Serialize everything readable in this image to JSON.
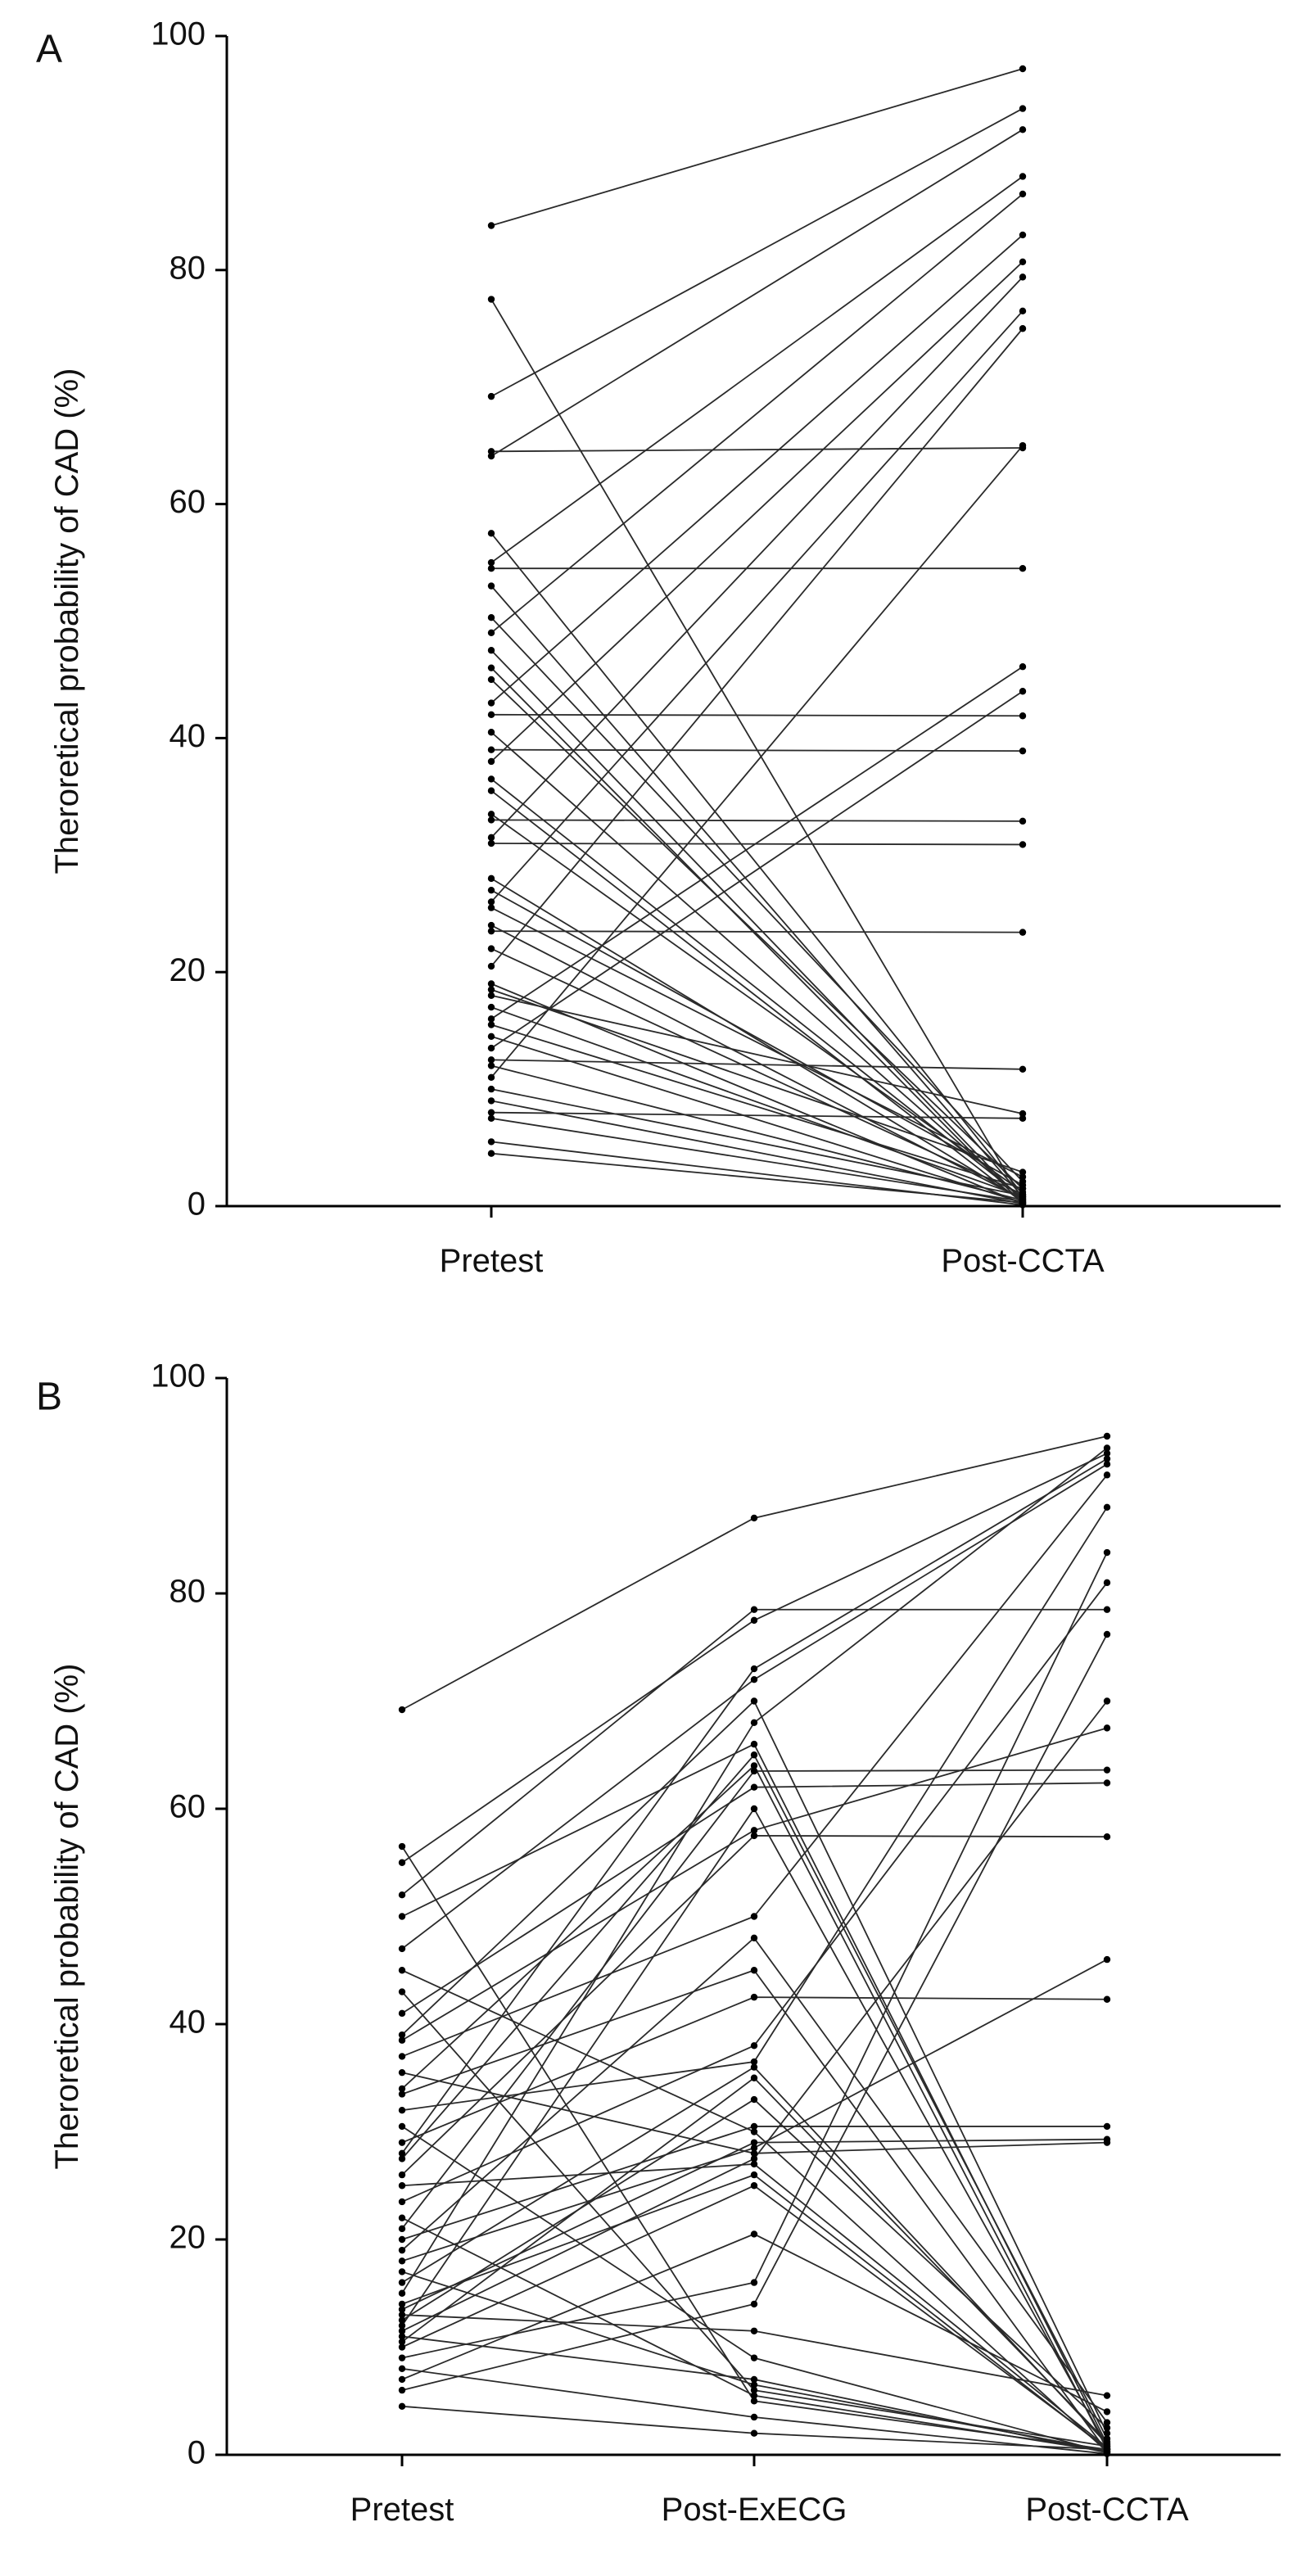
{
  "chart_data": [
    {
      "type": "line",
      "panel": "A",
      "ylabel": "Theroretical probability of CAD (%)",
      "categories": [
        "Pretest",
        "Post-CCTA"
      ],
      "ylim": [
        0,
        100
      ],
      "yticks": [
        0,
        20,
        40,
        60,
        80,
        100
      ],
      "color": "#2a2a2a",
      "series": [
        {
          "values": [
            83.8,
            97.2
          ]
        },
        {
          "values": [
            77.5,
            0.5
          ]
        },
        {
          "values": [
            69.2,
            93.8
          ]
        },
        {
          "values": [
            64.5,
            64.8
          ]
        },
        {
          "values": [
            64.1,
            92.0
          ]
        },
        {
          "values": [
            57.5,
            1.0
          ]
        },
        {
          "values": [
            55.0,
            88.0
          ]
        },
        {
          "values": [
            54.5,
            54.5
          ]
        },
        {
          "values": [
            53.0,
            0.8
          ]
        },
        {
          "values": [
            50.3,
            2.1
          ]
        },
        {
          "values": [
            49.0,
            86.5
          ]
        },
        {
          "values": [
            47.5,
            0.4
          ]
        },
        {
          "values": [
            45.0,
            1.5
          ]
        },
        {
          "values": [
            43.0,
            83.0
          ]
        },
        {
          "values": [
            42.0,
            41.9
          ]
        },
        {
          "values": [
            40.5,
            0.6
          ]
        },
        {
          "values": [
            39.0,
            38.9
          ]
        },
        {
          "values": [
            38.0,
            80.7
          ]
        },
        {
          "values": [
            35.5,
            0.3
          ]
        },
        {
          "values": [
            33.5,
            1.2
          ]
        },
        {
          "values": [
            33.0,
            32.9
          ]
        },
        {
          "values": [
            31.5,
            79.4
          ]
        },
        {
          "values": [
            31.0,
            30.9
          ]
        },
        {
          "values": [
            28.0,
            0.5
          ]
        },
        {
          "values": [
            26.0,
            76.5
          ]
        },
        {
          "values": [
            25.5,
            2.5
          ]
        },
        {
          "values": [
            23.5,
            23.4
          ]
        },
        {
          "values": [
            22.0,
            1.0
          ]
        },
        {
          "values": [
            20.5,
            75.0
          ]
        },
        {
          "values": [
            19.0,
            0.2
          ]
        },
        {
          "values": [
            18.0,
            7.9
          ]
        },
        {
          "values": [
            17.0,
            0.8
          ]
        },
        {
          "values": [
            16.0,
            46.1
          ]
        },
        {
          "values": [
            15.5,
            1.5
          ]
        },
        {
          "values": [
            14.5,
            0.3
          ]
        },
        {
          "values": [
            13.5,
            44.0
          ]
        },
        {
          "values": [
            12.5,
            11.7
          ]
        },
        {
          "values": [
            12.0,
            0.5
          ]
        },
        {
          "values": [
            11.0,
            65.0
          ]
        },
        {
          "values": [
            10.0,
            0.9
          ]
        },
        {
          "values": [
            9.0,
            0.2
          ]
        },
        {
          "values": [
            8.0,
            7.5
          ]
        },
        {
          "values": [
            7.5,
            0.4
          ]
        },
        {
          "values": [
            5.5,
            0.1
          ]
        },
        {
          "values": [
            4.5,
            0.3
          ]
        },
        {
          "values": [
            27.0,
            1.8
          ]
        },
        {
          "values": [
            36.5,
            0.7
          ]
        },
        {
          "values": [
            46.0,
            0.2
          ]
        },
        {
          "values": [
            24.0,
            0.6
          ]
        },
        {
          "values": [
            18.5,
            2.9
          ]
        }
      ]
    },
    {
      "type": "line",
      "panel": "B",
      "ylabel": "Theroretical probability of CAD (%)",
      "categories": [
        "Pretest",
        "Post-ExECG",
        "Post-CCTA"
      ],
      "ylim": [
        0,
        100
      ],
      "yticks": [
        0,
        20,
        40,
        60,
        80,
        100
      ],
      "color": "#2a2a2a",
      "series": [
        {
          "values": [
            69.2,
            87.0,
            94.6
          ]
        },
        {
          "values": [
            56.5,
            5.0,
            0.5
          ]
        },
        {
          "values": [
            55.0,
            77.5,
            93.0
          ]
        },
        {
          "values": [
            52.0,
            78.5,
            78.5
          ]
        },
        {
          "values": [
            50.0,
            66.0,
            1.0
          ]
        },
        {
          "values": [
            47.0,
            72.0,
            92.0
          ]
        },
        {
          "values": [
            45.0,
            30.0,
            0.3
          ]
        },
        {
          "values": [
            43.0,
            6.0,
            0.8
          ]
        },
        {
          "values": [
            41.0,
            62.0,
            62.4
          ]
        },
        {
          "values": [
            39.0,
            70.0,
            2.0
          ]
        },
        {
          "values": [
            37.0,
            50.0,
            91.0
          ]
        },
        {
          "values": [
            35.5,
            28.0,
            29.0
          ]
        },
        {
          "values": [
            34.0,
            64.0,
            0.5
          ]
        },
        {
          "values": [
            32.0,
            36.5,
            88.0
          ]
        },
        {
          "values": [
            30.5,
            9.0,
            0.2
          ]
        },
        {
          "values": [
            29.0,
            42.5,
            42.3
          ]
        },
        {
          "values": [
            27.5,
            65.0,
            1.5
          ]
        },
        {
          "values": [
            26.0,
            57.5,
            57.4
          ]
        },
        {
          "values": [
            25.0,
            27.0,
            0.7
          ]
        },
        {
          "values": [
            23.5,
            38.0,
            81.0
          ]
        },
        {
          "values": [
            22.0,
            5.5,
            0.3
          ]
        },
        {
          "values": [
            21.0,
            63.5,
            63.6
          ]
        },
        {
          "values": [
            20.0,
            30.5,
            30.5
          ]
        },
        {
          "values": [
            19.0,
            48.0,
            3.0
          ]
        },
        {
          "values": [
            18.0,
            28.5,
            46.0
          ]
        },
        {
          "values": [
            17.0,
            6.5,
            0.4
          ]
        },
        {
          "values": [
            16.0,
            36.0,
            1.0
          ]
        },
        {
          "values": [
            15.0,
            68.0,
            93.5
          ]
        },
        {
          "values": [
            14.0,
            26.0,
            0.5
          ]
        },
        {
          "values": [
            13.5,
            29.0,
            29.3
          ]
        },
        {
          "values": [
            13.0,
            11.5,
            5.5
          ]
        },
        {
          "values": [
            12.5,
            33.0,
            2.5
          ]
        },
        {
          "values": [
            12.0,
            60.0,
            0.8
          ]
        },
        {
          "values": [
            11.5,
            27.5,
            70.0
          ]
        },
        {
          "values": [
            11.0,
            7.0,
            0.2
          ]
        },
        {
          "values": [
            10.5,
            35.0,
            1.2
          ]
        },
        {
          "values": [
            10.0,
            25.0,
            0.6
          ]
        },
        {
          "values": [
            9.0,
            16.0,
            83.8
          ]
        },
        {
          "values": [
            8.0,
            3.5,
            0.1
          ]
        },
        {
          "values": [
            7.0,
            20.5,
            4.0
          ]
        },
        {
          "values": [
            6.0,
            14.0,
            76.2
          ]
        },
        {
          "values": [
            4.5,
            2.0,
            0.5
          ]
        },
        {
          "values": [
            28.0,
            73.0,
            92.5
          ]
        },
        {
          "values": [
            33.5,
            45.0,
            0.3
          ]
        },
        {
          "values": [
            38.5,
            58.0,
            67.5
          ]
        }
      ]
    }
  ]
}
